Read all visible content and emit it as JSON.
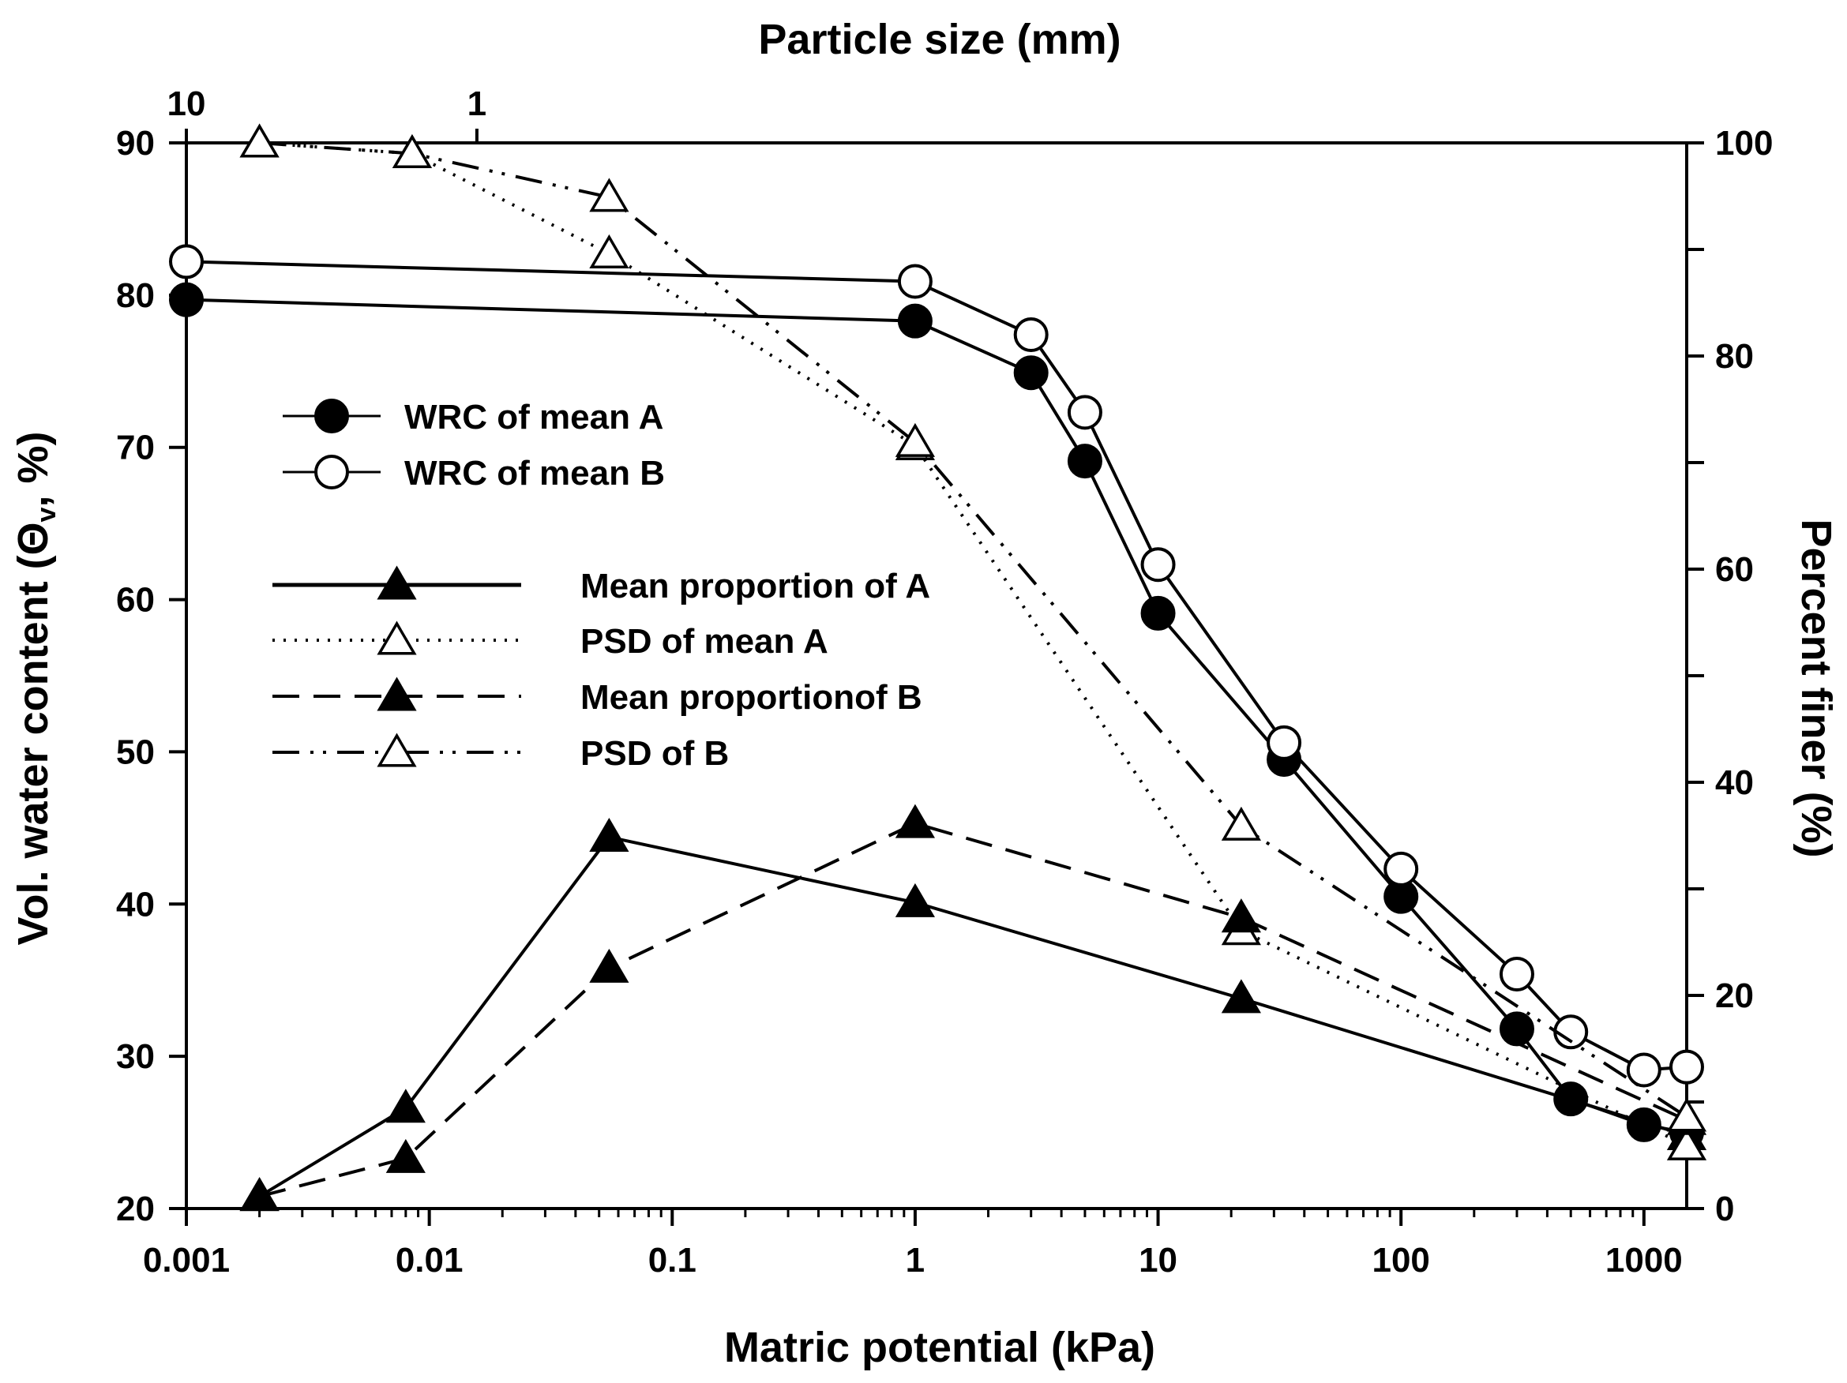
{
  "chart_data": {
    "type": "line",
    "title": "",
    "xlabel": "Matric potential (kPa)",
    "x2label": "Particle size (mm)",
    "ylabel": "Vol. water content (Θ",
    "ylabel_sub": "v",
    "ylabel_tail": ", %)",
    "y2label": "Percent finer (%)",
    "x_scale": "log",
    "xlim": [
      0.001,
      1500
    ],
    "ylim": [
      20,
      90
    ],
    "y2lim": [
      0,
      100
    ],
    "x_ticks": [
      {
        "value": 0.001,
        "label": "0.001"
      },
      {
        "value": 0.01,
        "label": "0.01"
      },
      {
        "value": 0.1,
        "label": "0.1"
      },
      {
        "value": 1,
        "label": "1"
      },
      {
        "value": 10,
        "label": "10"
      },
      {
        "value": 100,
        "label": "100"
      },
      {
        "value": 1000,
        "label": "1000"
      }
    ],
    "x2_ticks": [
      {
        "value": 10,
        "label": "10"
      },
      {
        "value": 1,
        "label": "1"
      }
    ],
    "x2_tick_positions_in_x_units": [
      0.001,
      0.0157
    ],
    "y_ticks": [
      20,
      30,
      40,
      50,
      60,
      70,
      80,
      90
    ],
    "y2_ticks": [
      0,
      20,
      40,
      60,
      80,
      100
    ],
    "series": [
      {
        "name": "WRC of mean A",
        "axis": "left",
        "marker": "circle-filled",
        "line": "solid",
        "x": [
          0.001,
          1,
          3,
          5,
          10,
          33,
          100,
          300,
          500,
          1000,
          1500
        ],
        "y": [
          79.7,
          78.3,
          74.9,
          69.1,
          59.1,
          49.5,
          40.5,
          31.8,
          27.2,
          25.5,
          25.0
        ]
      },
      {
        "name": "WRC of mean B",
        "axis": "left",
        "marker": "circle-open",
        "line": "solid",
        "x": [
          0.001,
          1,
          3,
          5,
          10,
          33,
          100,
          300,
          500,
          1000,
          1500
        ],
        "y": [
          82.2,
          80.9,
          77.4,
          72.3,
          62.3,
          50.6,
          42.3,
          35.4,
          31.6,
          29.1,
          29.3
        ]
      },
      {
        "name": "Mean proportion of A",
        "axis": "left",
        "marker": "triangle-filled",
        "line": "solid",
        "x": [
          0.002,
          0.008,
          0.055,
          1,
          22,
          1500
        ],
        "y": [
          20.8,
          26.6,
          44.4,
          40.1,
          33.8,
          24.8
        ]
      },
      {
        "name": "PSD of mean A",
        "axis": "right",
        "marker": "triangle-open",
        "line": "dotted",
        "x": [
          0.002,
          0.0085,
          0.055,
          1,
          22,
          1500
        ],
        "y": [
          100.0,
          99.0,
          89.6,
          71.6,
          26.1,
          5.9
        ]
      },
      {
        "name": "Mean proportionof B",
        "axis": "left",
        "marker": "triangle-filled",
        "line": "dashed",
        "x": [
          0.002,
          0.008,
          0.055,
          1,
          22,
          1500
        ],
        "y": [
          20.8,
          23.3,
          35.8,
          45.3,
          39.1,
          25.8
        ]
      },
      {
        "name": "PSD of B",
        "axis": "right",
        "marker": "triangle-open",
        "line": "dash-dot-dot",
        "x": [
          0.002,
          0.0085,
          0.055,
          1,
          22,
          1500
        ],
        "y": [
          100.0,
          99.0,
          94.9,
          71.9,
          35.9,
          8.6
        ]
      }
    ]
  }
}
